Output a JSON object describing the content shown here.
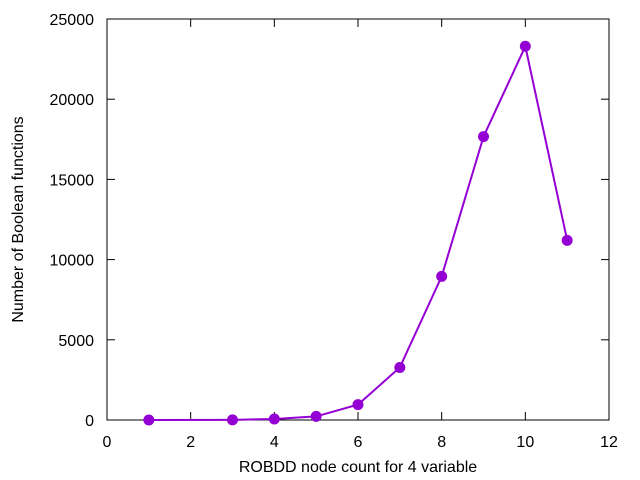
{
  "chart_data": {
    "type": "line",
    "title": "",
    "xlabel": "ROBDD node count for 4 variable",
    "ylabel": "Number of Boolean functions",
    "xlim": [
      0,
      12
    ],
    "ylim": [
      0,
      25000
    ],
    "xticks": [
      0,
      2,
      4,
      6,
      8,
      10,
      12
    ],
    "yticks": [
      0,
      5000,
      10000,
      15000,
      20000,
      25000
    ],
    "grid": false,
    "legend": "none",
    "series": [
      {
        "color": "#9400d3",
        "x": [
          1,
          3,
          4,
          5,
          6,
          7,
          8,
          9,
          10,
          11
        ],
        "y": [
          2,
          8,
          64,
          224,
          960,
          3276,
          8952,
          17664,
          23300,
          11200
        ]
      }
    ]
  }
}
